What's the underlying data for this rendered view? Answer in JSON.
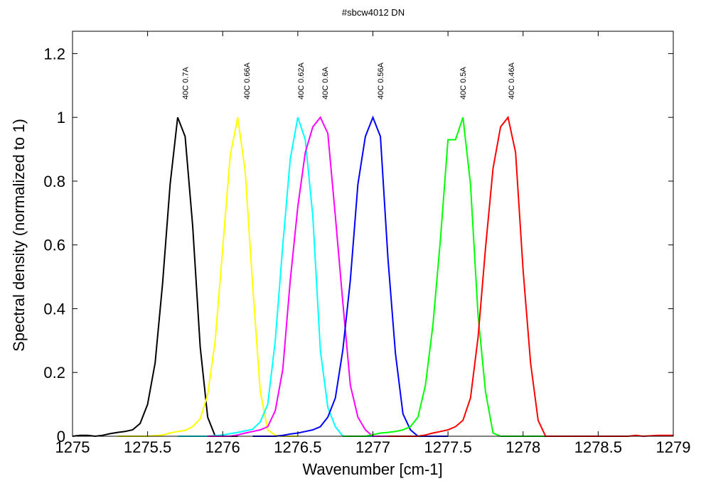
{
  "chart_data": {
    "type": "line",
    "title": "#sbcw4012 DN",
    "xlabel": "Wavenumber [cm-1]",
    "ylabel": "Spectral density (normalized to 1)",
    "xlim": [
      1275,
      1279
    ],
    "ylim": [
      0,
      1.25
    ],
    "xticks": [
      1275,
      1275.5,
      1276,
      1276.5,
      1277,
      1277.5,
      1278,
      1278.5,
      1279
    ],
    "xtick_labels": [
      "1275",
      "1275.5",
      "1276",
      "1276.5",
      "1277",
      "1277.5",
      "1278",
      "1278.5",
      "1279"
    ],
    "yticks": [
      0,
      0.2,
      0.4,
      0.6,
      0.8,
      1,
      1.2
    ],
    "ytick_labels": [
      "0",
      "0.2",
      "0.4",
      "0.6",
      "0.8",
      "1",
      "1.2"
    ],
    "grid": false,
    "legend": "none",
    "series": [
      {
        "name": "40C 0.7A",
        "color": "#000000",
        "label_x": 1275.75,
        "x": [
          1275.0,
          1275.05,
          1275.1,
          1275.15,
          1275.2,
          1275.25,
          1275.3,
          1275.35,
          1275.4,
          1275.45,
          1275.5,
          1275.55,
          1275.6,
          1275.65,
          1275.7,
          1275.75,
          1275.8,
          1275.85,
          1275.9,
          1275.95,
          1276.0,
          1276.05,
          1276.1
        ],
        "y": [
          0.0,
          0.003,
          0.003,
          0.0,
          0.003,
          0.008,
          0.012,
          0.015,
          0.02,
          0.04,
          0.1,
          0.23,
          0.48,
          0.79,
          1.0,
          0.94,
          0.66,
          0.28,
          0.06,
          0.0,
          0.0,
          0.0,
          0.0
        ]
      },
      {
        "name": "40C 0.66A",
        "color": "#ffff00",
        "label_x": 1276.16,
        "x": [
          1275.3,
          1275.5,
          1275.6,
          1275.65,
          1275.7,
          1275.75,
          1275.8,
          1275.85,
          1275.9,
          1275.95,
          1276.0,
          1276.05,
          1276.1,
          1276.15,
          1276.2,
          1276.25,
          1276.3,
          1276.35,
          1276.4,
          1276.45,
          1276.5
        ],
        "y": [
          0.0,
          0.0,
          0.004,
          0.01,
          0.015,
          0.018,
          0.03,
          0.055,
          0.13,
          0.3,
          0.59,
          0.88,
          1.0,
          0.83,
          0.47,
          0.14,
          0.02,
          0.003,
          0.0,
          0.0,
          0.0
        ]
      },
      {
        "name": "40C 0.62A",
        "color": "#00ffff",
        "label_x": 1276.52,
        "x": [
          1275.7,
          1275.9,
          1276.0,
          1276.05,
          1276.1,
          1276.15,
          1276.2,
          1276.25,
          1276.3,
          1276.35,
          1276.4,
          1276.45,
          1276.5,
          1276.55,
          1276.6,
          1276.65,
          1276.7,
          1276.75,
          1276.8,
          1276.85,
          1277.0
        ],
        "y": [
          0.0,
          0.0,
          0.004,
          0.008,
          0.012,
          0.017,
          0.022,
          0.045,
          0.1,
          0.3,
          0.6,
          0.87,
          1.0,
          0.93,
          0.69,
          0.27,
          0.09,
          0.03,
          0.0,
          0.0,
          0.0
        ]
      },
      {
        "name": "40C 0.6A",
        "color": "#ff00ff",
        "label_x": 1276.68,
        "x": [
          1275.9,
          1276.05,
          1276.1,
          1276.15,
          1276.2,
          1276.25,
          1276.3,
          1276.35,
          1276.4,
          1276.45,
          1276.5,
          1276.55,
          1276.6,
          1276.65,
          1276.7,
          1276.75,
          1276.8,
          1276.85,
          1276.9,
          1276.95,
          1277.0,
          1277.2
        ],
        "y": [
          0.0,
          0.0,
          0.004,
          0.01,
          0.015,
          0.02,
          0.03,
          0.08,
          0.21,
          0.49,
          0.72,
          0.89,
          0.97,
          1.0,
          0.95,
          0.69,
          0.42,
          0.16,
          0.06,
          0.02,
          0.0,
          0.0
        ]
      },
      {
        "name": "40C 0.56A",
        "color": "#0000ff",
        "label_x": 1277.05,
        "x": [
          1276.2,
          1276.35,
          1276.4,
          1276.45,
          1276.5,
          1276.55,
          1276.6,
          1276.65,
          1276.7,
          1276.75,
          1276.8,
          1276.85,
          1276.9,
          1276.95,
          1277.0,
          1277.05,
          1277.1,
          1277.15,
          1277.2,
          1277.25,
          1277.3,
          1277.35,
          1277.5
        ],
        "y": [
          0.0,
          0.0,
          0.003,
          0.007,
          0.01,
          0.015,
          0.02,
          0.03,
          0.06,
          0.12,
          0.27,
          0.49,
          0.79,
          0.94,
          1.0,
          0.94,
          0.56,
          0.26,
          0.07,
          0.02,
          0.0,
          0.0,
          0.0
        ]
      },
      {
        "name": "40C 0.5A",
        "color": "#00ff00",
        "label_x": 1277.6,
        "x": [
          1276.8,
          1276.95,
          1277.0,
          1277.05,
          1277.1,
          1277.15,
          1277.2,
          1277.25,
          1277.3,
          1277.35,
          1277.4,
          1277.45,
          1277.5,
          1277.55,
          1277.6,
          1277.65,
          1277.7,
          1277.75,
          1277.8,
          1277.85,
          1277.9,
          1278.0,
          1278.3,
          1278.5
        ],
        "y": [
          0.0,
          0.0,
          0.005,
          0.01,
          0.012,
          0.015,
          0.02,
          0.03,
          0.06,
          0.16,
          0.35,
          0.62,
          0.93,
          0.93,
          1.0,
          0.79,
          0.38,
          0.14,
          0.01,
          0.0,
          0.0,
          0.0,
          0.0,
          0.0
        ]
      },
      {
        "name": "40C 0.46A",
        "color": "#ff0000",
        "label_x": 1277.92,
        "x": [
          1277.1,
          1277.3,
          1277.35,
          1277.4,
          1277.45,
          1277.5,
          1277.55,
          1277.6,
          1277.65,
          1277.7,
          1277.75,
          1277.8,
          1277.85,
          1277.9,
          1277.95,
          1278.0,
          1278.05,
          1278.1,
          1278.15,
          1278.2,
          1278.25,
          1278.5,
          1278.7,
          1278.75,
          1278.8,
          1278.9,
          1279.0
        ],
        "y": [
          0.0,
          0.0,
          0.004,
          0.01,
          0.015,
          0.02,
          0.03,
          0.05,
          0.12,
          0.31,
          0.59,
          0.84,
          0.97,
          1.0,
          0.89,
          0.52,
          0.23,
          0.05,
          0.0,
          0.0,
          0.0,
          0.0,
          0.0,
          0.003,
          0.0,
          0.003,
          0.003
        ]
      }
    ]
  }
}
